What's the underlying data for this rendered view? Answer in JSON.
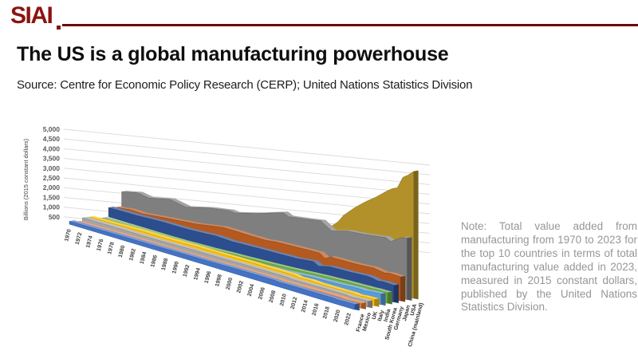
{
  "header": {
    "logo": "SIAI"
  },
  "title": "The US is a global manufacturing powerhouse",
  "source": "Source: Centre for Economic Policy Research (CERP); United Nations Statistics Division",
  "note": "Note: Total value added from manufacturing from 1970 to 2023 for the top 10 countries in terms of total manufacturing value added in 2023, measured in 2015 constant dollars, published by the United Nations Statistics Division.",
  "colors": {
    "brand": "#8B1410",
    "rule": "#6D0505",
    "grid": "#D9D9D9",
    "note_text": "#969696",
    "axis_text": "#595959",
    "tick_text": "#3F3F3F"
  },
  "chart_data": {
    "type": "area",
    "variant": "3d-depth-series",
    "title": "",
    "ylabel": "Billions (2015 constant dollars)",
    "ylim": [
      0,
      5000
    ],
    "y_ticks": [
      500,
      1000,
      1500,
      2000,
      2500,
      3000,
      3500,
      4000,
      4500,
      5000
    ],
    "x_range": [
      1970,
      2023
    ],
    "x_ticks": [
      1970,
      1972,
      1974,
      1976,
      1978,
      1980,
      1982,
      1984,
      1986,
      1988,
      1990,
      1992,
      1994,
      1996,
      1998,
      2000,
      2002,
      2004,
      2006,
      2008,
      2010,
      2012,
      2014,
      2016,
      2018,
      2020,
      2022
    ],
    "grid": true,
    "legend_position": "depth-axis-labels",
    "series_front_to_back": [
      {
        "name": "France",
        "color": "#4472C4",
        "points": [
          [
            1970,
            150
          ],
          [
            1975,
            172
          ],
          [
            1980,
            192
          ],
          [
            1985,
            196
          ],
          [
            1990,
            222
          ],
          [
            1995,
            232
          ],
          [
            2000,
            262
          ],
          [
            2005,
            272
          ],
          [
            2008,
            272
          ],
          [
            2009,
            242
          ],
          [
            2011,
            255
          ],
          [
            2015,
            258
          ],
          [
            2019,
            262
          ],
          [
            2020,
            238
          ],
          [
            2021,
            255
          ],
          [
            2023,
            268
          ]
        ]
      },
      {
        "name": "Mexico",
        "color": "#ED7D31",
        "points": [
          [
            1970,
            62
          ],
          [
            1975,
            82
          ],
          [
            1980,
            102
          ],
          [
            1985,
            108
          ],
          [
            1990,
            124
          ],
          [
            1995,
            132
          ],
          [
            2000,
            176
          ],
          [
            2005,
            182
          ],
          [
            2008,
            192
          ],
          [
            2009,
            175
          ],
          [
            2012,
            200
          ],
          [
            2015,
            218
          ],
          [
            2019,
            228
          ],
          [
            2020,
            205
          ],
          [
            2021,
            220
          ],
          [
            2023,
            248
          ]
        ]
      },
      {
        "name": "UK",
        "color": "#A5A5A5",
        "points": [
          [
            1970,
            188
          ],
          [
            1975,
            196
          ],
          [
            1980,
            188
          ],
          [
            1985,
            200
          ],
          [
            1990,
            228
          ],
          [
            1995,
            240
          ],
          [
            2000,
            262
          ],
          [
            2005,
            270
          ],
          [
            2008,
            272
          ],
          [
            2009,
            245
          ],
          [
            2012,
            252
          ],
          [
            2015,
            268
          ],
          [
            2019,
            272
          ],
          [
            2020,
            248
          ],
          [
            2021,
            268
          ],
          [
            2023,
            278
          ]
        ]
      },
      {
        "name": "Italy",
        "color": "#FFC000",
        "points": [
          [
            1970,
            162
          ],
          [
            1975,
            192
          ],
          [
            1980,
            228
          ],
          [
            1985,
            234
          ],
          [
            1990,
            268
          ],
          [
            1995,
            280
          ],
          [
            2000,
            298
          ],
          [
            2005,
            296
          ],
          [
            2008,
            306
          ],
          [
            2009,
            255
          ],
          [
            2011,
            280
          ],
          [
            2013,
            258
          ],
          [
            2015,
            262
          ],
          [
            2019,
            278
          ],
          [
            2020,
            250
          ],
          [
            2021,
            282
          ],
          [
            2023,
            295
          ]
        ]
      },
      {
        "name": "India",
        "color": "#5B9BD5",
        "points": [
          [
            1970,
            36
          ],
          [
            1975,
            44
          ],
          [
            1980,
            54
          ],
          [
            1985,
            68
          ],
          [
            1990,
            90
          ],
          [
            1995,
            112
          ],
          [
            2000,
            138
          ],
          [
            2005,
            198
          ],
          [
            2010,
            298
          ],
          [
            2015,
            352
          ],
          [
            2019,
            420
          ],
          [
            2020,
            398
          ],
          [
            2021,
            440
          ],
          [
            2023,
            478
          ]
        ]
      },
      {
        "name": "South Korea",
        "color": "#70AD47",
        "points": [
          [
            1970,
            5
          ],
          [
            1975,
            12
          ],
          [
            1980,
            22
          ],
          [
            1985,
            38
          ],
          [
            1990,
            76
          ],
          [
            1995,
            130
          ],
          [
            2000,
            182
          ],
          [
            2005,
            248
          ],
          [
            2010,
            330
          ],
          [
            2015,
            398
          ],
          [
            2019,
            430
          ],
          [
            2020,
            435
          ],
          [
            2021,
            455
          ],
          [
            2023,
            462
          ]
        ]
      },
      {
        "name": "Germany",
        "color": "#2C4E8E",
        "points": [
          [
            1970,
            382
          ],
          [
            1975,
            398
          ],
          [
            1980,
            448
          ],
          [
            1985,
            458
          ],
          [
            1990,
            532
          ],
          [
            1993,
            498
          ],
          [
            1995,
            522
          ],
          [
            2000,
            562
          ],
          [
            2005,
            602
          ],
          [
            2008,
            682
          ],
          [
            2009,
            558
          ],
          [
            2011,
            668
          ],
          [
            2015,
            702
          ],
          [
            2018,
            748
          ],
          [
            2019,
            730
          ],
          [
            2020,
            678
          ],
          [
            2021,
            712
          ],
          [
            2023,
            698
          ]
        ]
      },
      {
        "name": "Japan",
        "color": "#B4591F",
        "points": [
          [
            1970,
            332
          ],
          [
            1973,
            418
          ],
          [
            1975,
            398
          ],
          [
            1980,
            522
          ],
          [
            1985,
            632
          ],
          [
            1990,
            818
          ],
          [
            1992,
            822
          ],
          [
            1995,
            812
          ],
          [
            1998,
            818
          ],
          [
            2000,
            872
          ],
          [
            2005,
            928
          ],
          [
            2008,
            952
          ],
          [
            2009,
            798
          ],
          [
            2010,
            918
          ],
          [
            2012,
            932
          ],
          [
            2015,
            948
          ],
          [
            2018,
            1002
          ],
          [
            2020,
            932
          ],
          [
            2021,
            978
          ],
          [
            2023,
            968
          ]
        ]
      },
      {
        "name": "USA",
        "color": "#7F7F7F",
        "points": [
          [
            1970,
            878
          ],
          [
            1973,
            1022
          ],
          [
            1975,
            948
          ],
          [
            1979,
            1142
          ],
          [
            1982,
            1028
          ],
          [
            1986,
            1248
          ],
          [
            1990,
            1398
          ],
          [
            1991,
            1368
          ],
          [
            1995,
            1598
          ],
          [
            2000,
            1948
          ],
          [
            2001,
            1852
          ],
          [
            2004,
            1948
          ],
          [
            2007,
            2062
          ],
          [
            2009,
            1798
          ],
          [
            2012,
            1978
          ],
          [
            2015,
            2042
          ],
          [
            2019,
            2172
          ],
          [
            2020,
            2078
          ],
          [
            2022,
            2352
          ],
          [
            2023,
            2398
          ]
        ]
      },
      {
        "name": "China (mainland)",
        "color": "#B2912A",
        "points": [
          [
            1970,
            45
          ],
          [
            1975,
            65
          ],
          [
            1980,
            95
          ],
          [
            1985,
            150
          ],
          [
            1990,
            240
          ],
          [
            1995,
            460
          ],
          [
            2000,
            720
          ],
          [
            2003,
            950
          ],
          [
            2005,
            1250
          ],
          [
            2008,
            1850
          ],
          [
            2009,
            2050
          ],
          [
            2010,
            2350
          ],
          [
            2012,
            2750
          ],
          [
            2014,
            3100
          ],
          [
            2016,
            3400
          ],
          [
            2018,
            3750
          ],
          [
            2019,
            3900
          ],
          [
            2020,
            4000
          ],
          [
            2021,
            4450
          ],
          [
            2022,
            4600
          ],
          [
            2023,
            4800
          ]
        ]
      }
    ]
  }
}
